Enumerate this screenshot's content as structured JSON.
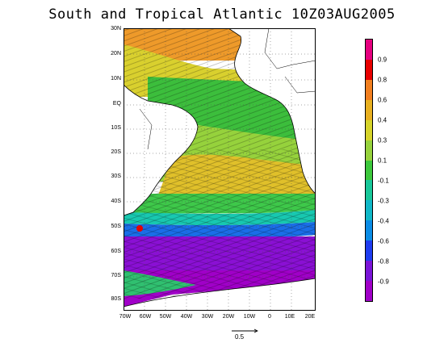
{
  "title": "South and Tropical Atlantic 10Z03AUG2005",
  "map": {
    "lat_labels": [
      "30N",
      "20N",
      "10N",
      "EQ",
      "10S",
      "20S",
      "30S",
      "40S",
      "50S",
      "60S",
      "70S",
      "80S"
    ],
    "lon_labels": [
      "70W",
      "60W",
      "50W",
      "40W",
      "30W",
      "20W",
      "10W",
      "0",
      "10E",
      "20E"
    ]
  },
  "colorbar": {
    "labels": [
      "0.9",
      "0.8",
      "0.6",
      "0.4",
      "0.3",
      "0.1",
      "-0.1",
      "-0.3",
      "-0.4",
      "-0.6",
      "-0.8",
      "-0.9"
    ],
    "colors": [
      "#e6007f",
      "#e80000",
      "#f27f1f",
      "#e8b020",
      "#d6d42a",
      "#96d23c",
      "#3cc83c",
      "#18c89a",
      "#10b8c8",
      "#0a8ce6",
      "#1e3cf0",
      "#7a14d8",
      "#a000c8"
    ]
  },
  "reference_vector": {
    "label": "0.5"
  }
}
